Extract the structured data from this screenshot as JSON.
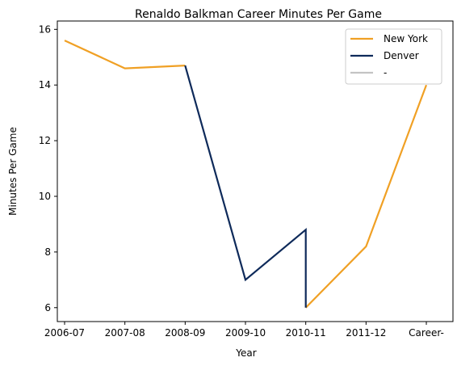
{
  "chart_data": {
    "type": "line",
    "title": "Renaldo Balkman Career Minutes Per Game",
    "xlabel": "Year",
    "ylabel": "Minutes Per Game",
    "categories": [
      "2006-07",
      "2007-08",
      "2008-09",
      "2009-10",
      "2010-11",
      "2011-12",
      "Career-"
    ],
    "y_ticks": [
      "6",
      "8",
      "10",
      "12",
      "14",
      "16"
    ],
    "ylim": [
      5.5,
      16.3
    ],
    "grid": false,
    "legend_placement": "top-right",
    "series": [
      {
        "name": "New York",
        "color": "#f0a024",
        "points": [
          {
            "x": "2006-07",
            "y": 15.6
          },
          {
            "x": "2007-08",
            "y": 14.6
          },
          {
            "x": "2008-09",
            "y": 14.7
          }
        ]
      },
      {
        "name": "New York",
        "color": "#f0a024",
        "points": [
          {
            "x": "2010-11",
            "y": 6.0
          },
          {
            "x": "2011-12",
            "y": 8.2
          },
          {
            "x": "Career-",
            "y": 14.0
          }
        ]
      },
      {
        "name": "Denver",
        "color": "#0e2a5a",
        "points": [
          {
            "x": "2008-09",
            "y": 14.7
          },
          {
            "x": "2009-10",
            "y": 7.0
          },
          {
            "x": "2010-11",
            "y": 8.8
          },
          {
            "x": "2010-11",
            "y": 6.0
          }
        ]
      }
    ],
    "legend": [
      {
        "label": "New York",
        "color": "#f0a024"
      },
      {
        "label": "Denver",
        "color": "#0e2a5a"
      },
      {
        "label": "-",
        "color": "#c4c4c4"
      }
    ]
  }
}
